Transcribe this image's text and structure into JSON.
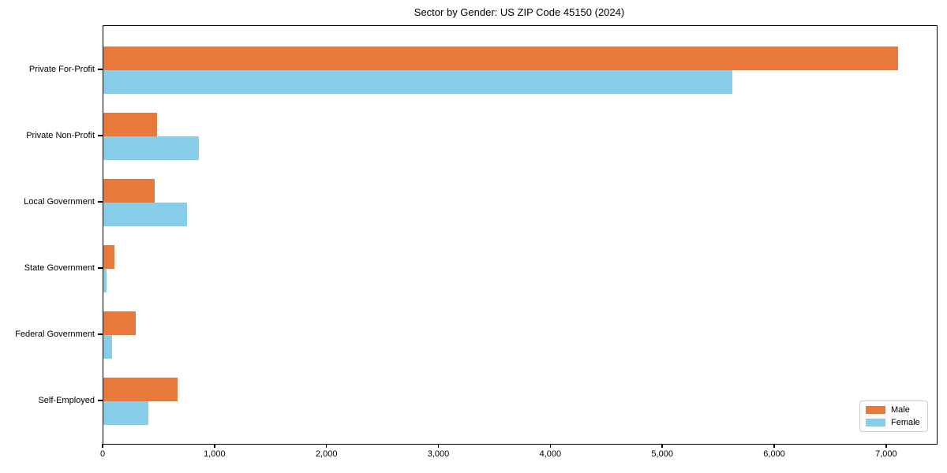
{
  "title": "Sector by Gender: US ZIP Code 45150 (2024)",
  "chart_data": {
    "type": "bar",
    "orientation": "horizontal",
    "title": "Sector by Gender: US ZIP Code 45150 (2024)",
    "categories": [
      "Private For-Profit",
      "Private Non-Profit",
      "Local Government",
      "State Government",
      "Federal Government",
      "Self-Employed"
    ],
    "series": [
      {
        "name": "Male",
        "color": "#E8793A",
        "values": [
          7100,
          480,
          460,
          100,
          290,
          660
        ]
      },
      {
        "name": "Female",
        "color": "#87CEEB",
        "values": [
          5620,
          850,
          750,
          30,
          75,
          400
        ]
      }
    ],
    "xlabel": "",
    "ylabel": "",
    "xlim": [
      0,
      7445
    ],
    "xticks": [
      0,
      1000,
      2000,
      3000,
      4000,
      5000,
      6000,
      7000
    ],
    "xtick_labels": [
      "0",
      "1,000",
      "2,000",
      "3,000",
      "4,000",
      "5,000",
      "6,000",
      "7,000"
    ],
    "grid": false,
    "legend_position": "lower right",
    "legend": {
      "entries": [
        {
          "label": "Male",
          "color": "#E8793A"
        },
        {
          "label": "Female",
          "color": "#87CEEB"
        }
      ]
    }
  }
}
